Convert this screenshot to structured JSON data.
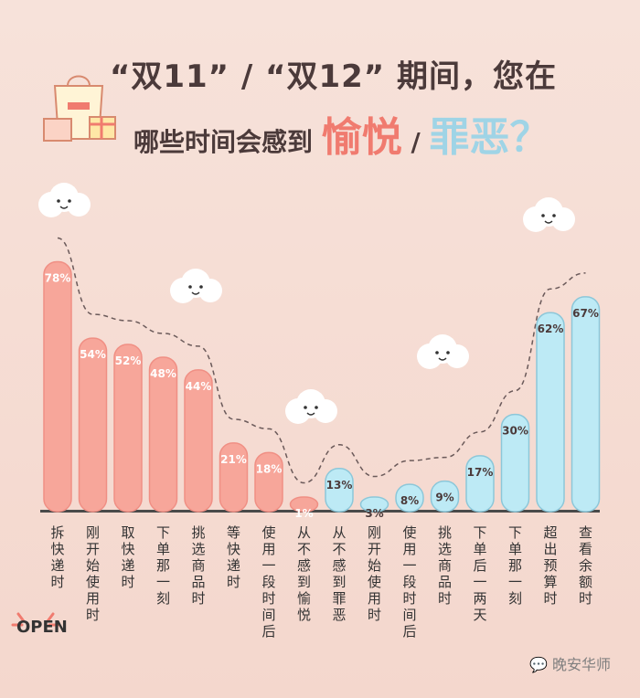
{
  "header": {
    "line1": "“双11” / “双12” 期间，您在",
    "line2_prefix": "哪些时间会感到",
    "line2_pos": "愉悦",
    "line2_sep": "/",
    "line2_neg": "罪恶？"
  },
  "footer": {
    "open_label": "OPEN",
    "watermark": "晚安华师"
  },
  "colors": {
    "positive": "#f7a69a",
    "positive_dark": "#f08f84",
    "negative": "#bdeaf5",
    "negative_dark": "#8cc7d9",
    "baseline": "#4a4a4a"
  },
  "chart_data": {
    "type": "bar",
    "categories": [
      "拆快递时",
      "刚开始使用时",
      "取快递时",
      "下单那一刻",
      "挑选商品时",
      "等快递时",
      "使用一段时间后",
      "从不感到愉悦",
      "从不感到罪恶",
      "刚开始使用时",
      "使用一段时间后",
      "挑选商品时",
      "下单后一两天",
      "下单那一刻",
      "超出预算时",
      "查看余额时"
    ],
    "values": [
      78,
      54,
      52,
      48,
      44,
      21,
      18,
      1,
      13,
      3,
      8,
      9,
      17,
      30,
      62,
      67
    ],
    "labels": [
      "78%",
      "54%",
      "52%",
      "48%",
      "44%",
      "21%",
      "18%",
      "1%",
      "13%",
      "3%",
      "8%",
      "9%",
      "17%",
      "30%",
      "62%",
      "67%"
    ],
    "groups": [
      "pos",
      "pos",
      "pos",
      "pos",
      "pos",
      "pos",
      "pos",
      "pos",
      "neg",
      "neg",
      "neg",
      "neg",
      "neg",
      "neg",
      "neg",
      "neg"
    ],
    "ylim": [
      0,
      100
    ]
  }
}
